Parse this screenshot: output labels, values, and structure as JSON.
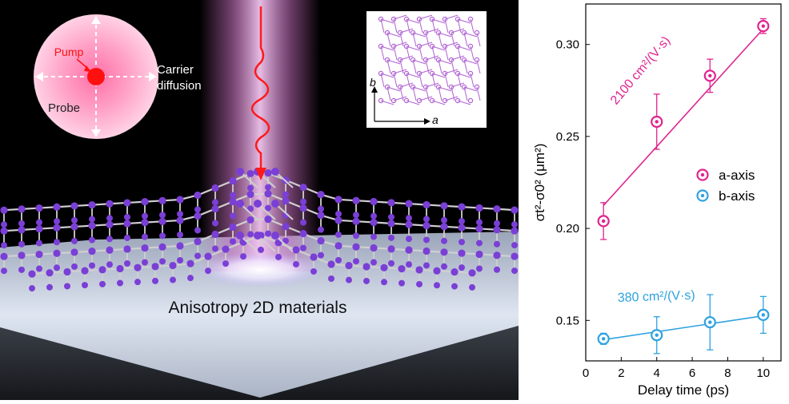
{
  "illustration": {
    "inset_circle": {
      "pump_label": "Pump",
      "carrier_label_line1": "Carrier",
      "carrier_label_line2": "diffusion",
      "probe_label": "Probe"
    },
    "lattice_inset": {
      "axis_b_label": "b",
      "axis_a_label": "a"
    },
    "caption": "Anisotropy 2D materials",
    "colors": {
      "beam": "#c86fc0",
      "pump_dot": "#ff1010",
      "atoms": "#7a3fd6",
      "bonds": "#cfcfcf",
      "substrate_top": "#dfe6f2"
    }
  },
  "chart_data": {
    "type": "scatter",
    "xlabel": "Delay time (ps)",
    "ylabel": "σt²-σ0² (μm²)",
    "xlim": [
      0,
      11
    ],
    "ylim": [
      0.128,
      0.322
    ],
    "xticks": [
      0,
      2,
      4,
      6,
      8,
      10
    ],
    "yticks": [
      0.15,
      0.2,
      0.25,
      0.3
    ],
    "ytick_labels": [
      "0.15",
      "0.20",
      "0.25",
      "0.30"
    ],
    "legend_position": "center-right",
    "series": [
      {
        "name": "a-axis",
        "color": "#e0248f",
        "x": [
          1,
          4,
          7,
          10
        ],
        "y": [
          0.204,
          0.258,
          0.283,
          0.31
        ],
        "err": [
          0.01,
          0.015,
          0.009,
          0.004
        ],
        "fit": {
          "x": [
            1,
            10
          ],
          "y": [
            0.2125,
            0.3085
          ]
        },
        "fit_label": "2100 cm²/(V·s)"
      },
      {
        "name": "b-axis",
        "color": "#2ea2e0",
        "x": [
          1,
          4,
          7,
          10
        ],
        "y": [
          0.14,
          0.142,
          0.149,
          0.153
        ],
        "err": [
          0.003,
          0.01,
          0.015,
          0.01
        ],
        "fit": {
          "x": [
            1,
            10
          ],
          "y": [
            0.1395,
            0.1525
          ]
        },
        "fit_label": "380 cm²/(V·s)"
      }
    ]
  }
}
